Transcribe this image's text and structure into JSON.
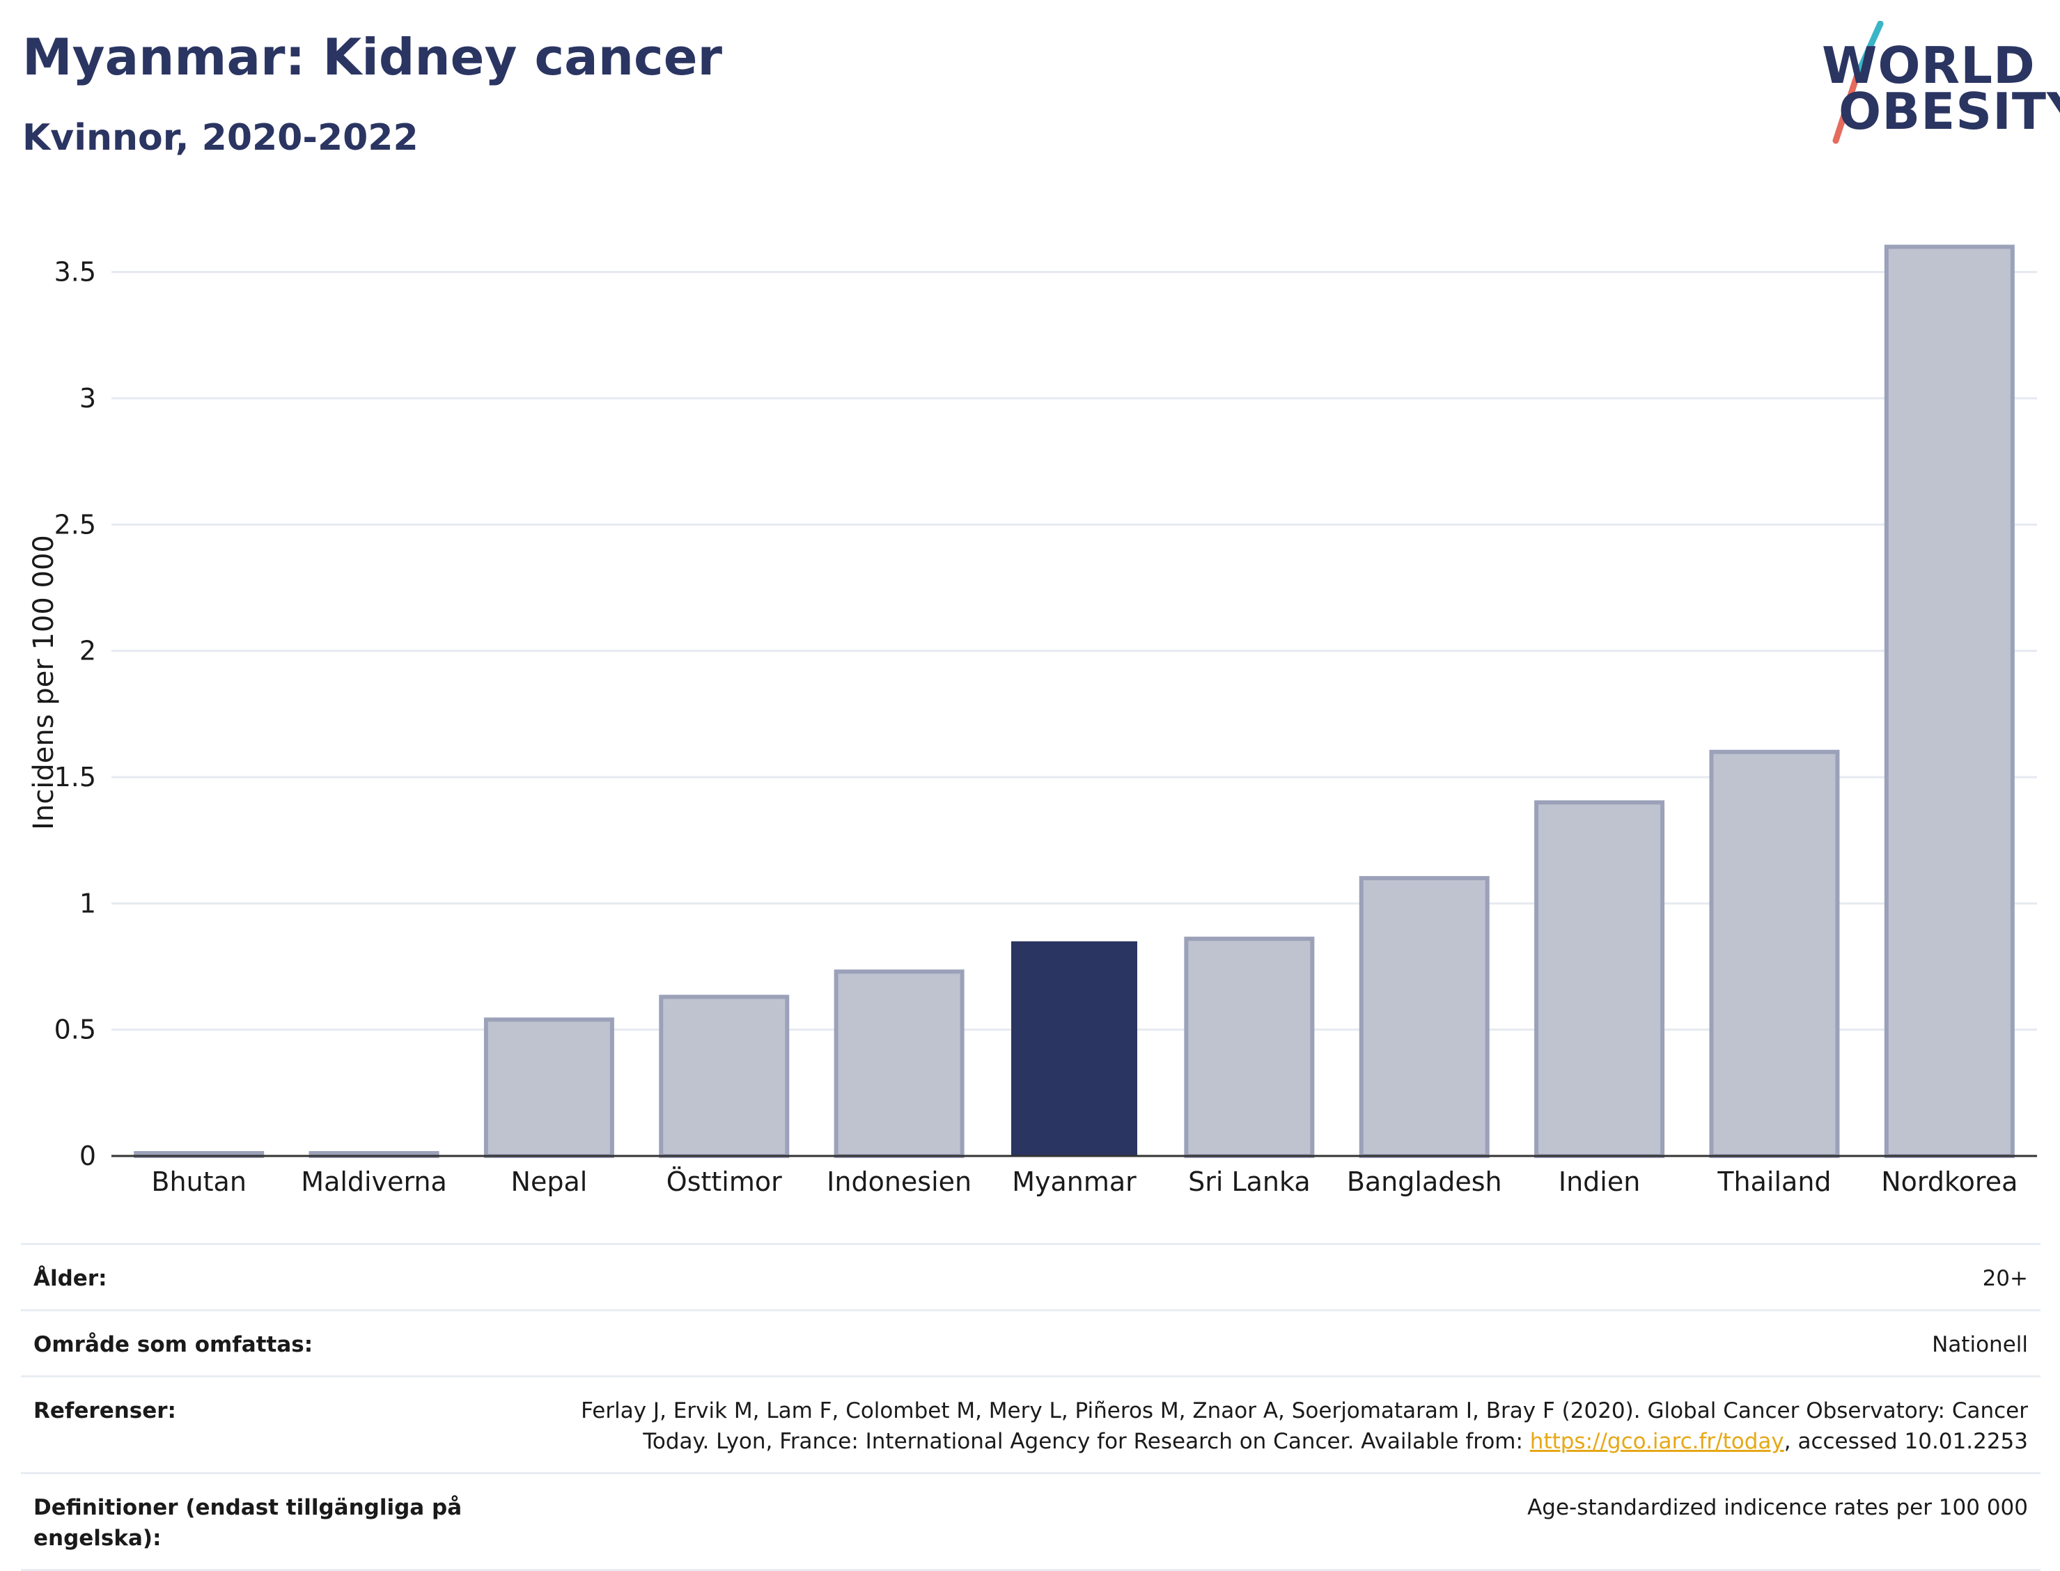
{
  "header": {
    "title": "Myanmar: Kidney cancer",
    "subtitle": "Kvinnor, 2020-2022"
  },
  "logo": {
    "line1": "WORLD",
    "line2": "OBESITY",
    "slash_colors": [
      "#3ab5c6",
      "#e56b5d"
    ]
  },
  "chart_data": {
    "type": "bar",
    "categories": [
      "Bhutan",
      "Maldiverna",
      "Nepal",
      "Östtimor",
      "Indonesien",
      "Myanmar",
      "Sri Lanka",
      "Bangladesh",
      "Indien",
      "Thailand",
      "Nordkorea"
    ],
    "values": [
      0.0,
      0.0,
      0.54,
      0.63,
      0.73,
      0.85,
      0.86,
      1.1,
      1.4,
      1.6,
      3.6
    ],
    "highlight": "Myanmar",
    "ylabel": "Incidens per 100 000",
    "xlabel": "",
    "ylim": [
      0,
      3.75
    ],
    "yticks": [
      0,
      0.5,
      1,
      1.5,
      2,
      2.5,
      3,
      3.5
    ],
    "ytick_labels": [
      "0",
      "0.5",
      "1",
      "1.5",
      "2",
      "2.5",
      "3",
      "3.5"
    ],
    "grid": true,
    "colors": {
      "bar": "#bfc3d0",
      "bar_edge": "#9ba1b8",
      "highlight": "#2b3562",
      "grid": "#e6eaf0",
      "axis": "#333333"
    }
  },
  "info": {
    "rows": [
      {
        "label": "Ålder:",
        "value": "20+"
      },
      {
        "label": "Område som omfattas:",
        "value": "Nationell"
      },
      {
        "label": "Referenser:",
        "value_pre": "Ferlay J, Ervik M, Lam F, Colombet M, Mery L, Piñeros M, Znaor A, Soerjomataram I, Bray F (2020). Global Cancer Observatory: Cancer Today. Lyon, France: International Agency for Research on Cancer. Available from: ",
        "link": "https://gco.iarc.fr/today",
        "value_post": ", accessed 10.01.2253"
      },
      {
        "label": "Definitioner (endast tillgängliga på engelska):",
        "value": "Age-standardized indicence rates per 100 000"
      }
    ]
  }
}
